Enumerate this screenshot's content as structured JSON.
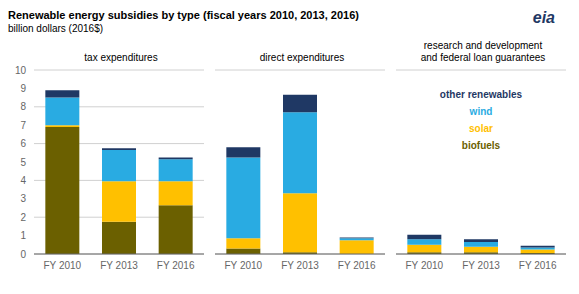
{
  "title": "Renewable energy subsidies by type (fiscal years 2010, 2013, 2016)",
  "subtitle": "billion dollars (2016$)",
  "annotations": [
    "eia"
  ],
  "chart_data": [
    {
      "type": "bar",
      "stacked": true,
      "title": "tax expenditures",
      "categories": [
        "FY 2010",
        "FY 2013",
        "FY 2016"
      ],
      "series": [
        {
          "name": "biofuels",
          "color": "#6b6000",
          "values": [
            6.9,
            1.75,
            2.65
          ]
        },
        {
          "name": "solar",
          "color": "#ffc000",
          "values": [
            0.1,
            2.2,
            1.3
          ]
        },
        {
          "name": "wind",
          "color": "#29abe2",
          "values": [
            1.5,
            1.7,
            1.2
          ]
        },
        {
          "name": "other renewables",
          "color": "#1f3864",
          "values": [
            0.4,
            0.1,
            0.1
          ]
        }
      ],
      "ylim": [
        0,
        10
      ],
      "yticks": [
        0,
        1,
        2,
        3,
        4,
        5,
        6,
        7,
        8,
        9,
        10
      ],
      "grid": true
    },
    {
      "type": "bar",
      "stacked": true,
      "title": "direct expenditures",
      "categories": [
        "FY 2010",
        "FY 2013",
        "FY 2016"
      ],
      "series": [
        {
          "name": "biofuels",
          "color": "#6b6000",
          "values": [
            0.3,
            0.1,
            0.0
          ]
        },
        {
          "name": "solar",
          "color": "#ffc000",
          "values": [
            0.55,
            3.2,
            0.75
          ]
        },
        {
          "name": "wind",
          "color": "#29abe2",
          "values": [
            4.4,
            4.4,
            0.1
          ]
        },
        {
          "name": "other renewables",
          "color": "#1f3864",
          "values": [
            0.55,
            0.95,
            0.05
          ]
        }
      ],
      "ylim": [
        0,
        10
      ],
      "yticks": [
        0,
        1,
        2,
        3,
        4,
        5,
        6,
        7,
        8,
        9,
        10
      ],
      "grid": true,
      "tick_labels": "x"
    },
    {
      "type": "bar",
      "stacked": true,
      "title": "research and development\nand federal loan guarantees",
      "categories": [
        "FY 2010",
        "FY 2013",
        "FY 2016"
      ],
      "series": [
        {
          "name": "biofuels",
          "color": "#6b6000",
          "values": [
            0.1,
            0.1,
            0.05
          ]
        },
        {
          "name": "solar",
          "color": "#ffc000",
          "values": [
            0.4,
            0.3,
            0.2
          ]
        },
        {
          "name": "wind",
          "color": "#29abe2",
          "values": [
            0.3,
            0.25,
            0.1
          ]
        },
        {
          "name": "other renewables",
          "color": "#1f3864",
          "values": [
            0.25,
            0.15,
            0.1
          ]
        }
      ],
      "ylim": [
        0,
        10
      ],
      "yticks": [
        0,
        1,
        2,
        3,
        4,
        5,
        6,
        7,
        8,
        9,
        10
      ],
      "grid": true,
      "tick_labels": "x",
      "legend": "upper center"
    }
  ]
}
